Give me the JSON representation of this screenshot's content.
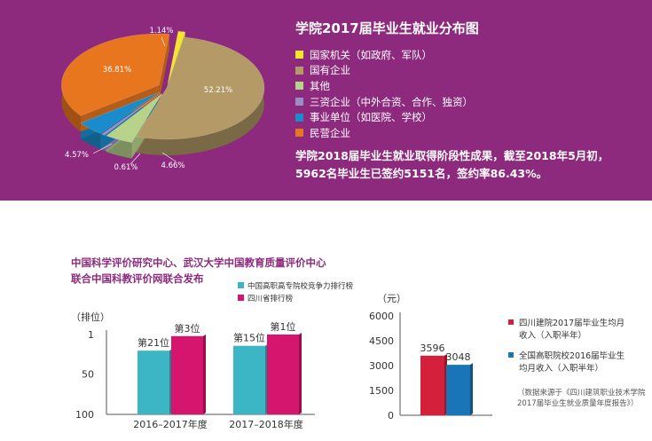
{
  "pie": {
    "title": "学院2017届毕业生就业分布图",
    "summary_line1": "学院2018届毕业生就业取得阶段性成果，截至2018年5月初，",
    "summary_line2": "5962名毕业生已签约5151名，签约率86.43%。"
  },
  "section2": {
    "heading_line1": "中国科学评价研究中心、武汉大学中国教育质量评价中心",
    "heading_line2": "联合中国科教评价网联合发布"
  },
  "note": "（数据来源于《四川建筑职业技术学院2017届毕业生就业质量年度报告》）",
  "colors": {
    "band": "#8e2a7d",
    "teal": "#3cb6c4",
    "magenta": "#d6156f",
    "red": "#d4203b",
    "blue": "#1a74b8"
  },
  "chart_data": [
    {
      "type": "pie",
      "title": "学院2017届毕业生就业分布图",
      "labels": [
        "国家机关（如政府、军队）",
        "国有企业",
        "其他",
        "三资企业（中外合资、合作、独资）",
        "事业单位（如医院、学校）",
        "民营企业"
      ],
      "values": [
        1.14,
        52.21,
        4.66,
        0.61,
        4.57,
        36.81
      ],
      "value_labels": [
        "1.14%",
        "52.21%",
        "4.66%",
        "0.61%",
        "4.57%",
        "36.81%"
      ],
      "colors": [
        "#f6e629",
        "#b39a66",
        "#b7d38a",
        "#9a8dc8",
        "#1a8ccc",
        "#e8761f"
      ],
      "legend_position": "right"
    },
    {
      "type": "bar",
      "categories": [
        "2016–2017年度",
        "2017–2018年度"
      ],
      "series": [
        {
          "name": "中国高职高专院校竞争力排行榜",
          "values": [
            21,
            15
          ],
          "labels": [
            "第21位",
            "第15位"
          ],
          "color": "#3cb6c4"
        },
        {
          "name": "四川省排行榜",
          "values": [
            3,
            1
          ],
          "labels": [
            "第3位",
            "第1位"
          ],
          "color": "#d6156f"
        }
      ],
      "ylabel": "（排位）",
      "yticks": [
        "1",
        "50",
        "100"
      ],
      "ylim": [
        100,
        1
      ],
      "legend_position": "top"
    },
    {
      "type": "bar",
      "series": [
        {
          "name": "四川建院2017届毕业生均月收入（入职半年）",
          "values": [
            3596
          ],
          "labels": [
            "3596"
          ],
          "color": "#d4203b",
          "legend_lines": [
            "四川建院2017届毕业生均月",
            "收入（入职半年）"
          ]
        },
        {
          "name": "全国高职院校2016届毕业生均月收入（入职半年）",
          "values": [
            3048
          ],
          "labels": [
            "3048"
          ],
          "color": "#1a74b8",
          "legend_lines": [
            "全国高职院校2016届毕业生",
            "均月收入（入职半年）"
          ]
        }
      ],
      "ylabel": "（元）",
      "yticks": [
        "0",
        "1500",
        "3000",
        "4500",
        "6000"
      ],
      "ylim": [
        0,
        6000
      ],
      "legend_position": "right"
    }
  ]
}
